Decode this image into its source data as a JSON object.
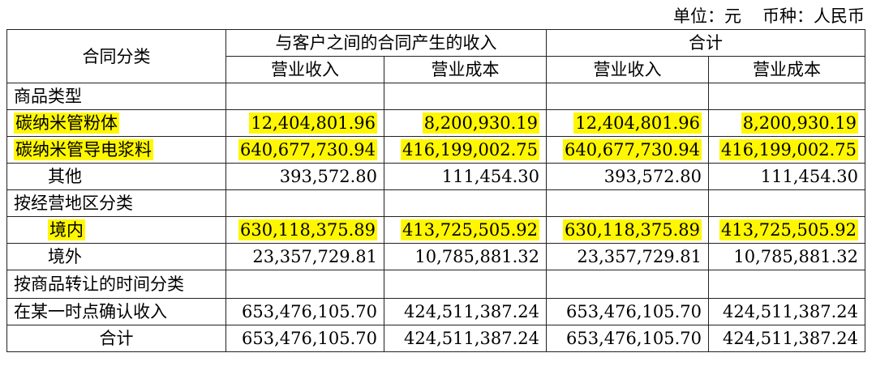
{
  "unit_line": {
    "unit": "单位：元",
    "currency": "币种：人民币"
  },
  "header": {
    "category": "合同分类",
    "group1": "与客户之间的合同产生的收入",
    "group2": "合计",
    "revenue": "营业收入",
    "cost": "营业成本"
  },
  "rows": [
    {
      "label": "商品类型",
      "values": [
        "",
        "",
        "",
        ""
      ]
    },
    {
      "label": "碳纳米管粉体",
      "values": [
        "12,404,801.96",
        "8,200,930.19",
        "12,404,801.96",
        "8,200,930.19"
      ]
    },
    {
      "label": "碳纳米管导电浆料",
      "values": [
        "640,677,730.94",
        "416,199,002.75",
        "640,677,730.94",
        "416,199,002.75"
      ]
    },
    {
      "label": "其他",
      "values": [
        "393,572.80",
        "111,454.30",
        "393,572.80",
        "111,454.30"
      ]
    },
    {
      "label": "按经营地区分类",
      "values": [
        "",
        "",
        "",
        ""
      ]
    },
    {
      "label": "境内",
      "values": [
        "630,118,375.89",
        "413,725,505.92",
        "630,118,375.89",
        "413,725,505.92"
      ]
    },
    {
      "label": "境外",
      "values": [
        "23,357,729.81",
        "10,785,881.32",
        "23,357,729.81",
        "10,785,881.32"
      ]
    },
    {
      "label": "按商品转让的时间分类",
      "values": [
        "",
        "",
        "",
        ""
      ]
    },
    {
      "label": "在某一时点确认收入",
      "values": [
        "653,476,105.70",
        "424,511,387.24",
        "653,476,105.70",
        "424,511,387.24"
      ]
    },
    {
      "label": "合计",
      "values": [
        "653,476,105.70",
        "424,511,387.24",
        "653,476,105.70",
        "424,511,387.24"
      ]
    }
  ],
  "highlight_color": "#fff700"
}
